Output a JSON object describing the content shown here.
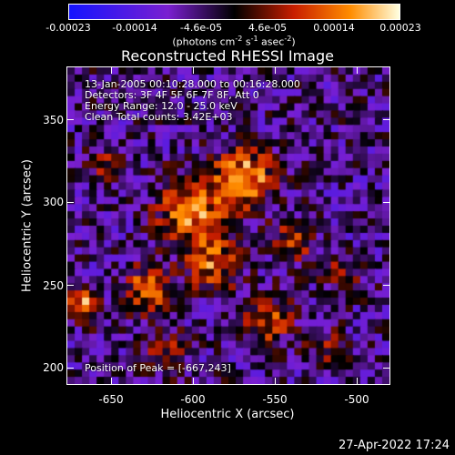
{
  "colorbar": {
    "tick_labels": [
      "-0.00023",
      "-0.00014",
      "-4.6e-05",
      "4.6e-05",
      "0.00014",
      "0.00023"
    ],
    "units": "(photons cm",
    "units_exp1": "-2",
    "units_mid": " s",
    "units_exp2": "-1",
    "units_mid2": " asec",
    "units_exp3": "-2",
    "units_end": ")"
  },
  "title": "Reconstructed RHESSI Image",
  "info": {
    "line1": "13-Jan-2005 00:10:28.000 to 00:16:28.000",
    "line2": "Detectors: 3F 4F 5F 6F 7F 8F, Att 0",
    "line3": "Energy Range: 12.0 - 25.0 keV",
    "line4": "Clean     Total counts: 3.42E+03"
  },
  "peak_label": "Position of Peak = [-667,243]",
  "axes": {
    "x_label": "Heliocentric X (arcsec)",
    "y_label": "Heliocentric Y (arcsec)",
    "x_ticks": [
      "-650",
      "-600",
      "-550",
      "-500"
    ],
    "y_ticks": [
      "350",
      "300",
      "250",
      "200"
    ]
  },
  "timestamp": "27-Apr-2022 17:24",
  "colors": {
    "low": "#1414ff",
    "mid_low": "#7a1fd0",
    "zero": "#000000",
    "mid_high": "#c81e00",
    "high": "#ff8c00",
    "max": "#ffffe0"
  }
}
